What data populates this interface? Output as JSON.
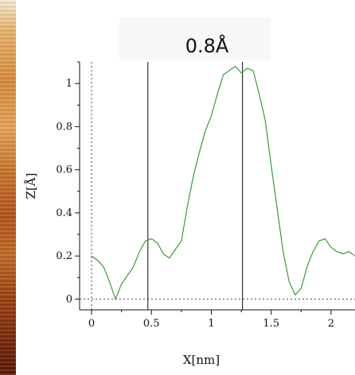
{
  "chart_data": {
    "type": "line",
    "title": "0.8Å",
    "xlabel": "X[nm]",
    "ylabel": "Z[Å]",
    "xlim": [
      -0.1,
      2.2
    ],
    "ylim": [
      -0.05,
      1.1
    ],
    "x_ticks": [
      "0",
      "0.5",
      "1",
      "1.5",
      "2"
    ],
    "y_ticks": [
      "0",
      "0.2",
      "0.4",
      "0.6",
      "0.8",
      "1"
    ],
    "vertical_markers_x": [
      0.47,
      1.26
    ],
    "reference_lines": {
      "x_zero_dashed": 0,
      "y_zero_dashed": 0
    },
    "line_color": "#3a9a3a",
    "grid": false,
    "series": [
      {
        "x": [
          0.0,
          0.05,
          0.1,
          0.15,
          0.2,
          0.25,
          0.3,
          0.35,
          0.4,
          0.45,
          0.5,
          0.55,
          0.6,
          0.65,
          0.7,
          0.75,
          0.8,
          0.85,
          0.9,
          0.95,
          1.0,
          1.05,
          1.1,
          1.15,
          1.2,
          1.25,
          1.3,
          1.35,
          1.4,
          1.45,
          1.5,
          1.55,
          1.6,
          1.65,
          1.7,
          1.75,
          1.8,
          1.85,
          1.9,
          1.95,
          2.0,
          2.05,
          2.1,
          2.15,
          2.2
        ],
        "values": [
          0.2,
          0.18,
          0.15,
          0.08,
          0.0,
          0.07,
          0.11,
          0.15,
          0.22,
          0.27,
          0.28,
          0.26,
          0.21,
          0.19,
          0.23,
          0.27,
          0.43,
          0.57,
          0.68,
          0.78,
          0.85,
          0.95,
          1.04,
          1.06,
          1.08,
          1.05,
          1.07,
          1.06,
          0.95,
          0.83,
          0.62,
          0.42,
          0.22,
          0.08,
          0.02,
          0.05,
          0.15,
          0.22,
          0.27,
          0.28,
          0.24,
          0.22,
          0.21,
          0.22,
          0.2
        ]
      }
    ]
  }
}
